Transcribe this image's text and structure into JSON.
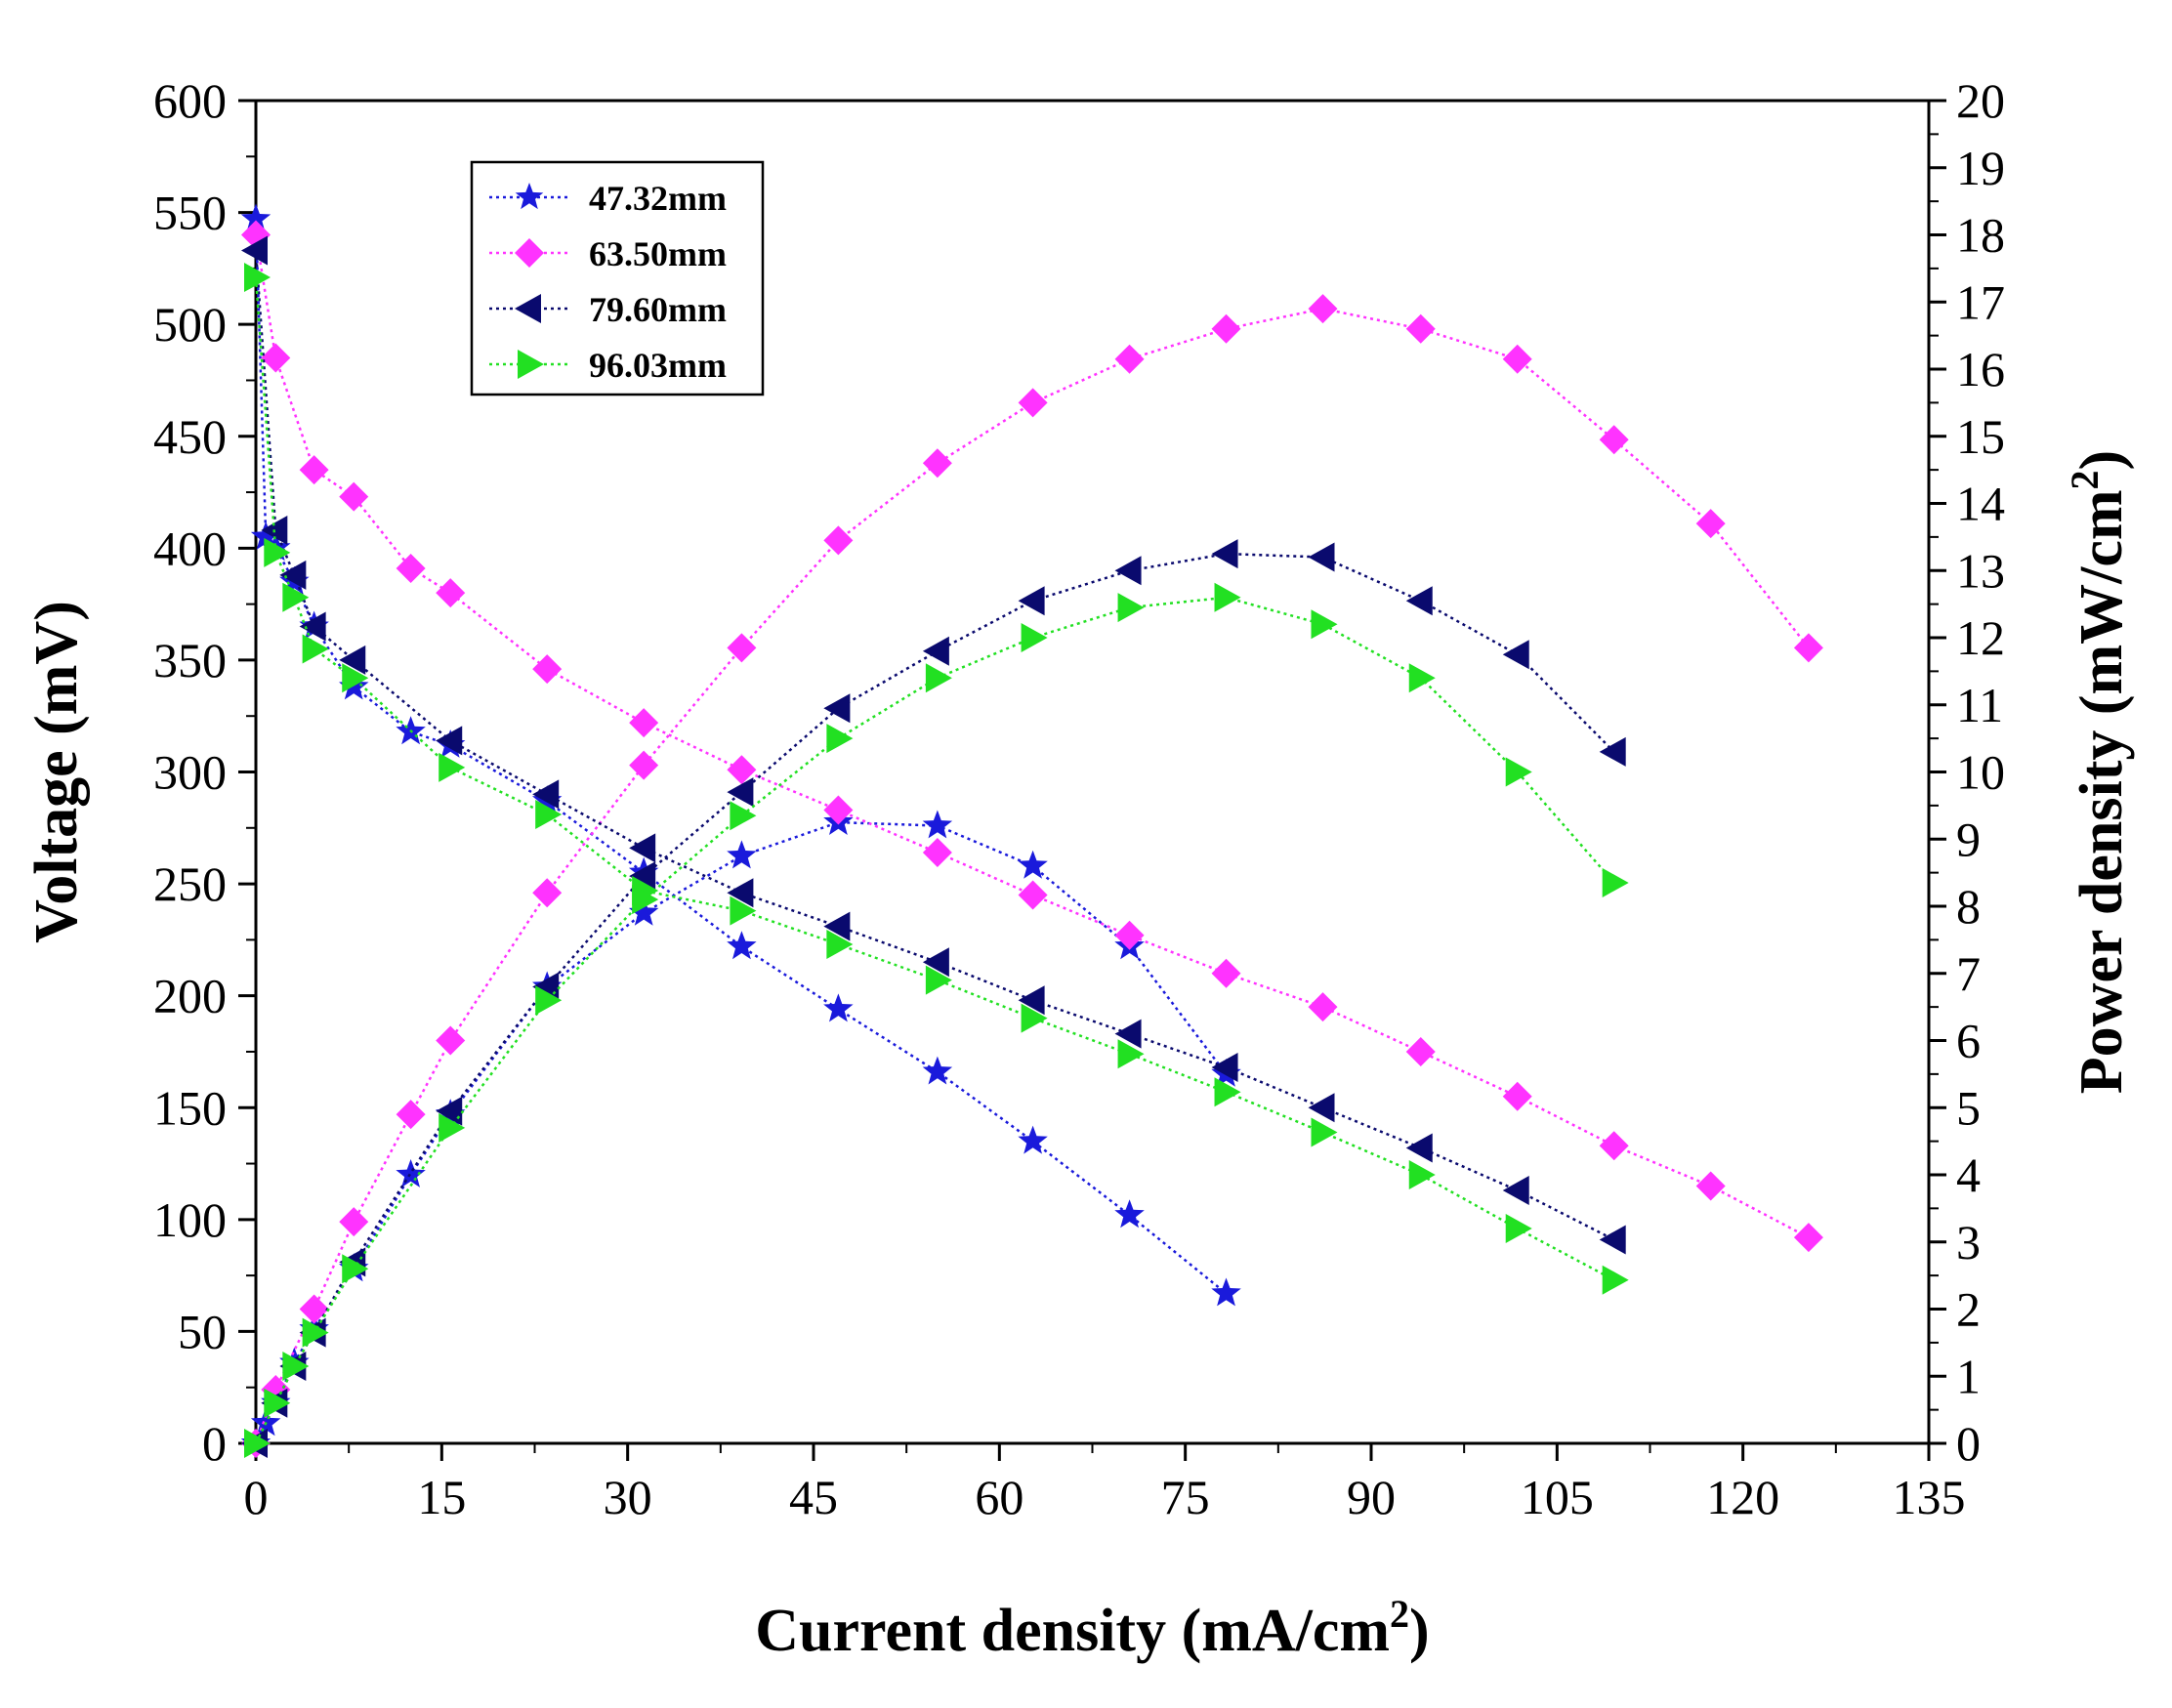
{
  "chart_data": {
    "type": "line",
    "title": "",
    "xlabel": "Current density (mA/cm",
    "xlabel_sup": "2",
    "xlabel_end": ")",
    "ylabel": "Voltage (mV)",
    "y2label": "Power density (mW/cm",
    "y2label_sup": "2",
    "y2label_end": ")",
    "xlim": [
      0,
      135
    ],
    "ylim": [
      0,
      600
    ],
    "y2lim": [
      0,
      20
    ],
    "xticks": [
      "0",
      "15",
      "30",
      "45",
      "60",
      "75",
      "90",
      "105",
      "120",
      "135"
    ],
    "yticks": [
      "0",
      "50",
      "100",
      "150",
      "200",
      "250",
      "300",
      "350",
      "400",
      "450",
      "500",
      "550",
      "600"
    ],
    "y2ticks": [
      "0",
      "1",
      "2",
      "3",
      "4",
      "5",
      "6",
      "7",
      "8",
      "9",
      "10",
      "11",
      "12",
      "13",
      "14",
      "15",
      "16",
      "17",
      "18",
      "19",
      "20"
    ],
    "legend_position": "top-left",
    "series": [
      {
        "name": "47.32mm",
        "color": "#1a1adb",
        "marker": "star",
        "voltage": {
          "x": [
            0,
            0.8,
            1.6,
            3.1,
            4.7,
            7.9,
            12.5,
            15.7,
            23.5,
            31.3,
            39.2,
            47.0,
            55.0,
            62.7,
            70.5,
            78.3
          ],
          "y": [
            547,
            405,
            400,
            385,
            365,
            338,
            318,
            312,
            287,
            255,
            222,
            194,
            166,
            135,
            102,
            67
          ]
        },
        "power": {
          "x": [
            0,
            0.8,
            1.6,
            3.1,
            4.7,
            7.9,
            12.5,
            15.7,
            23.5,
            31.3,
            39.2,
            47.0,
            55.0,
            62.7,
            70.5,
            78.3
          ],
          "y": [
            0,
            0.3,
            0.6,
            1.2,
            1.7,
            2.6,
            4.0,
            4.9,
            6.8,
            7.9,
            8.75,
            9.25,
            9.2,
            8.6,
            7.4,
            5.5
          ]
        }
      },
      {
        "name": "63.50mm",
        "color": "#ff33ff",
        "marker": "diamond",
        "voltage": {
          "x": [
            0,
            1.6,
            4.7,
            7.9,
            12.5,
            15.7,
            23.5,
            31.3,
            39.2,
            47.0,
            55.0,
            62.7,
            70.5,
            78.3,
            86.1,
            94.0,
            101.8,
            109.6,
            117.4,
            125.3
          ],
          "y": [
            540,
            485,
            435,
            423,
            391,
            380,
            346,
            322,
            301,
            283,
            264,
            245,
            227,
            210,
            195,
            175,
            155,
            133,
            115,
            92
          ]
        },
        "power": {
          "x": [
            0,
            1.6,
            4.7,
            7.9,
            12.5,
            15.7,
            23.5,
            31.3,
            39.2,
            47.0,
            55.0,
            62.7,
            70.5,
            78.3,
            86.1,
            94.0,
            101.8,
            109.6,
            117.4,
            125.3
          ],
          "y": [
            0,
            0.8,
            2.0,
            3.3,
            4.9,
            6.0,
            8.2,
            10.1,
            11.85,
            13.45,
            14.6,
            15.5,
            16.15,
            16.6,
            16.9,
            16.6,
            16.15,
            14.95,
            13.7,
            11.85
          ]
        }
      },
      {
        "name": "79.60mm",
        "color": "#0a0a6e",
        "marker": "triangle-left",
        "voltage": {
          "x": [
            0,
            1.6,
            3.1,
            4.7,
            7.9,
            15.7,
            23.5,
            31.3,
            39.2,
            47.0,
            55.0,
            62.7,
            70.5,
            78.3,
            86.1,
            94.0,
            101.8,
            109.6
          ],
          "y": [
            533,
            408,
            388,
            365,
            350,
            314,
            290,
            266,
            246,
            231,
            215,
            198,
            183,
            168,
            150,
            132,
            113,
            91
          ]
        },
        "power": {
          "x": [
            0,
            1.6,
            3.1,
            4.7,
            7.9,
            15.7,
            23.5,
            31.3,
            39.2,
            47.0,
            55.0,
            62.7,
            70.5,
            78.3,
            86.1,
            94.0,
            101.8,
            109.6
          ],
          "y": [
            0,
            0.6,
            1.15,
            1.65,
            2.7,
            4.95,
            6.8,
            8.45,
            9.7,
            10.95,
            11.8,
            12.55,
            13.0,
            13.25,
            13.2,
            12.55,
            11.75,
            10.3
          ]
        }
      },
      {
        "name": "96.03mm",
        "color": "#22e022",
        "marker": "triangle-right",
        "voltage": {
          "x": [
            0,
            1.6,
            3.1,
            4.7,
            7.9,
            15.7,
            23.5,
            31.3,
            39.2,
            47.0,
            55.0,
            62.7,
            70.5,
            78.3,
            86.1,
            94.0,
            101.8,
            109.6
          ],
          "y": [
            521,
            398,
            378,
            355,
            342,
            302,
            281,
            247,
            238,
            223,
            207,
            190,
            174,
            157,
            139,
            120,
            96,
            73
          ]
        },
        "power": {
          "x": [
            0,
            1.6,
            3.1,
            4.7,
            7.9,
            15.7,
            23.5,
            31.3,
            39.2,
            47.0,
            55.0,
            62.7,
            70.5,
            78.3,
            86.1,
            94.0,
            101.8,
            109.6
          ],
          "y": [
            0,
            0.6,
            1.15,
            1.65,
            2.6,
            4.7,
            6.6,
            8.1,
            9.35,
            10.5,
            11.4,
            12.0,
            12.45,
            12.6,
            12.2,
            11.4,
            10.0,
            8.35
          ]
        }
      }
    ]
  }
}
